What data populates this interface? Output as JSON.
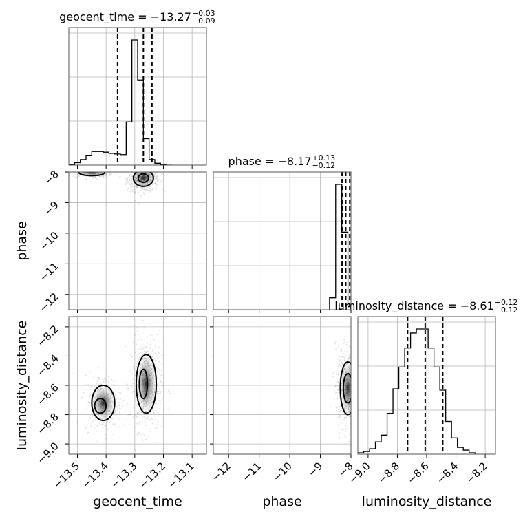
{
  "chart_data": {
    "type": "corner",
    "parameters": [
      "geocent_time",
      "phase",
      "luminosity_distance"
    ],
    "axis_labels": [
      "geocent_time",
      "phase",
      "luminosity_distance"
    ],
    "ranges": {
      "geocent_time": [
        -13.53,
        -13.05
      ],
      "phase": [
        -12.5,
        -8.0
      ],
      "luminosity_distance": [
        -9.07,
        -8.13
      ]
    },
    "ticks": {
      "geocent_time": [
        "−13.5",
        "−13.4",
        "−13.3",
        "−13.2",
        "−13.1"
      ],
      "geocent_time_values": [
        -13.5,
        -13.4,
        -13.3,
        -13.2,
        -13.1
      ],
      "phase": [
        "−12",
        "−11",
        "−10",
        "−9",
        "−8"
      ],
      "phase_values": [
        -12,
        -11,
        -10,
        -9,
        -8
      ],
      "luminosity_distance": [
        "−9.0",
        "−8.8",
        "−8.6",
        "−8.4",
        "−8.2"
      ],
      "luminosity_distance_values": [
        -9.0,
        -8.8,
        -8.6,
        -8.4,
        -8.2
      ]
    },
    "titles": {
      "geocent_time": {
        "text": "geocent_time = −13.27",
        "upper": "+0.03",
        "lower": "−0.09"
      },
      "phase": {
        "text": "phase = −8.17",
        "upper": "+0.13",
        "lower": "−0.12"
      },
      "luminosity_distance": {
        "text": "luminosity_distance = −8.61",
        "upper": "+0.12",
        "lower": "−0.12"
      }
    },
    "quantiles": {
      "geocent_time": [
        -13.36,
        -13.27,
        -13.24
      ],
      "phase": [
        -8.29,
        -8.17,
        -8.04
      ],
      "luminosity_distance": [
        -8.73,
        -8.61,
        -8.49
      ]
    },
    "histograms": {
      "geocent_time": {
        "edges": [
          -13.53,
          -13.51,
          -13.49,
          -13.47,
          -13.45,
          -13.43,
          -13.41,
          -13.39,
          -13.37,
          -13.35,
          -13.33,
          -13.31,
          -13.29,
          -13.27,
          -13.25,
          -13.23,
          -13.21,
          -13.19,
          -13.17
        ],
        "counts": [
          1,
          4,
          9,
          16,
          22,
          22,
          21,
          19,
          18,
          17,
          70,
          203,
          138,
          43,
          9,
          3,
          1,
          0
        ]
      },
      "phase": {
        "edges": [
          -8.7,
          -8.5,
          -8.3,
          -8.1,
          -7.9
        ],
        "counts": [
          20,
          210,
          130,
          5
        ]
      },
      "luminosity_distance": {
        "edges": [
          -9.07,
          -9.03,
          -8.99,
          -8.95,
          -8.91,
          -8.87,
          -8.83,
          -8.79,
          -8.75,
          -8.71,
          -8.67,
          -8.63,
          -8.59,
          -8.55,
          -8.51,
          -8.47,
          -8.43,
          -8.39,
          -8.35,
          -8.31,
          -8.27
        ],
        "counts": [
          1,
          2,
          4,
          9,
          14,
          30,
          48,
          64,
          78,
          89,
          92,
          92,
          78,
          64,
          47,
          24,
          12,
          5,
          3,
          1
        ]
      }
    },
    "contours": {
      "geocent_time_phase": [
        {
          "level": "outer",
          "ellipses": [
            [
              -13.27,
              -8.2,
              0.035,
              0.27
            ],
            [
              -13.45,
              -8.02,
              0.045,
              0.1
            ]
          ]
        },
        {
          "level": "inner",
          "ellipses": [
            [
              -13.27,
              -8.2,
              0.018,
              0.14
            ]
          ]
        }
      ],
      "geocent_time_luminosity_distance": [
        {
          "level": "outer",
          "ellipses": [
            [
              -13.26,
              -8.59,
              0.035,
              0.2
            ],
            [
              -13.41,
              -8.72,
              0.04,
              0.12
            ]
          ]
        },
        {
          "level": "inner",
          "ellipses": [
            [
              -13.27,
              -8.59,
              0.014,
              0.1
            ],
            [
              -13.42,
              -8.74,
              0.02,
              0.05
            ]
          ]
        }
      ],
      "phase_luminosity_distance": [
        {
          "level": "outer",
          "ellipses": [
            [
              -8.1,
              -8.62,
              0.25,
              0.18
            ]
          ]
        },
        {
          "level": "inner",
          "ellipses": [
            [
              -8.1,
              -8.62,
              0.15,
              0.1
            ]
          ]
        }
      ]
    },
    "xlabel": "",
    "ylabel": ""
  }
}
